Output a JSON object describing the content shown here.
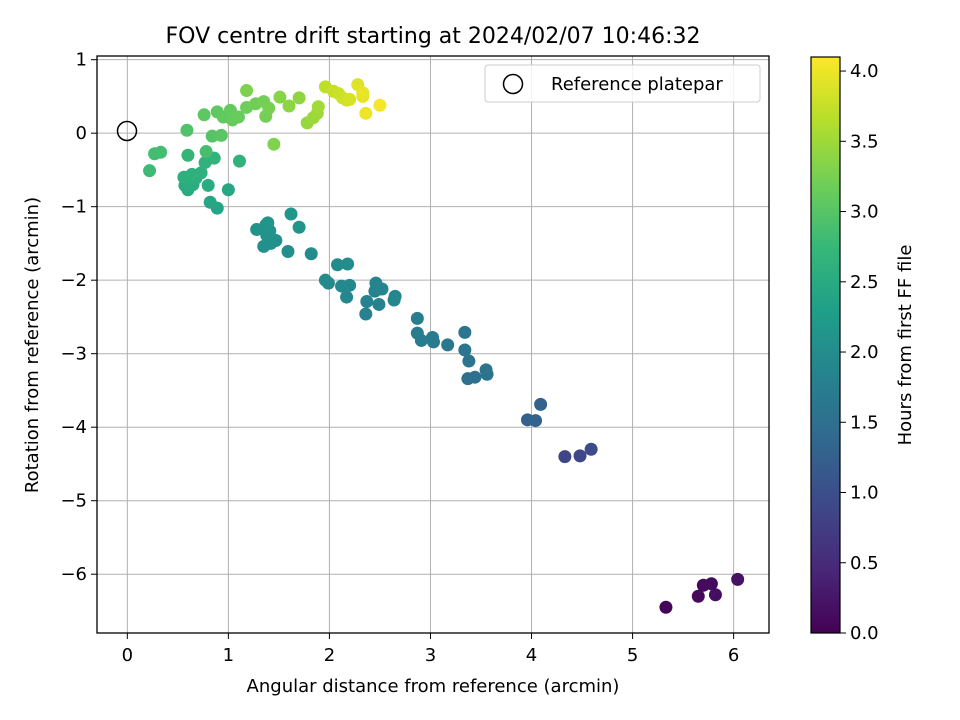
{
  "chart_data": {
    "type": "scatter",
    "title": "FOV centre drift starting at 2024/02/07 10:46:32",
    "xlabel": "Angular distance from reference (arcmin)",
    "ylabel": "Rotation from reference (arcmin)",
    "xlim": [
      -0.3,
      6.35
    ],
    "ylim": [
      -6.8,
      1.05
    ],
    "xticks": [
      0,
      1,
      2,
      3,
      4,
      5,
      6
    ],
    "yticks": [
      1,
      0,
      -1,
      -2,
      -3,
      -4,
      -5,
      -6
    ],
    "grid": true,
    "legend": {
      "placement": "top-right",
      "entries": [
        "Reference platepar"
      ]
    },
    "reference_point": {
      "x": 0,
      "y": 0,
      "label": "Reference platepar"
    },
    "colorbar": {
      "label": "Hours from first FF file",
      "range": [
        0.0,
        4.1
      ],
      "ticks": [
        "0.0",
        "0.5",
        "1.0",
        "1.5",
        "2.0",
        "2.5",
        "3.0",
        "3.5",
        "4.0"
      ],
      "colormap": [
        "#440154",
        "#482878",
        "#3e4989",
        "#31688e",
        "#26828e",
        "#1f9e89",
        "#35b779",
        "#6ece58",
        "#b5de2b",
        "#fde725"
      ]
    },
    "points": [
      {
        "x": 5.33,
        "y": -6.45,
        "c": 0.05
      },
      {
        "x": 5.65,
        "y": -6.3,
        "c": 0.08
      },
      {
        "x": 5.7,
        "y": -6.15,
        "c": 0.1
      },
      {
        "x": 5.78,
        "y": -6.13,
        "c": 0.12
      },
      {
        "x": 5.82,
        "y": -6.28,
        "c": 0.15
      },
      {
        "x": 6.04,
        "y": -6.07,
        "c": 0.2
      },
      {
        "x": 4.33,
        "y": -4.4,
        "c": 0.85
      },
      {
        "x": 4.48,
        "y": -4.39,
        "c": 0.9
      },
      {
        "x": 4.59,
        "y": -4.3,
        "c": 0.95
      },
      {
        "x": 3.96,
        "y": -3.9,
        "c": 1.25
      },
      {
        "x": 4.04,
        "y": -3.91,
        "c": 1.28
      },
      {
        "x": 4.09,
        "y": -3.69,
        "c": 1.3
      },
      {
        "x": 3.37,
        "y": -3.34,
        "c": 1.5
      },
      {
        "x": 3.44,
        "y": -3.32,
        "c": 1.52
      },
      {
        "x": 3.55,
        "y": -3.22,
        "c": 1.55
      },
      {
        "x": 3.56,
        "y": -3.28,
        "c": 1.56
      },
      {
        "x": 3.38,
        "y": -3.1,
        "c": 1.58
      },
      {
        "x": 3.34,
        "y": -2.95,
        "c": 1.6
      },
      {
        "x": 3.34,
        "y": -2.71,
        "c": 1.62
      },
      {
        "x": 3.17,
        "y": -2.88,
        "c": 1.65
      },
      {
        "x": 3.02,
        "y": -2.78,
        "c": 1.68
      },
      {
        "x": 3.03,
        "y": -2.84,
        "c": 1.69
      },
      {
        "x": 2.91,
        "y": -2.82,
        "c": 1.7
      },
      {
        "x": 2.87,
        "y": -2.72,
        "c": 1.72
      },
      {
        "x": 2.87,
        "y": -2.52,
        "c": 1.73
      },
      {
        "x": 2.36,
        "y": -2.46,
        "c": 1.8
      },
      {
        "x": 2.37,
        "y": -2.29,
        "c": 1.82
      },
      {
        "x": 2.49,
        "y": -2.33,
        "c": 1.83
      },
      {
        "x": 2.45,
        "y": -2.15,
        "c": 1.84
      },
      {
        "x": 2.46,
        "y": -2.04,
        "c": 1.85
      },
      {
        "x": 2.52,
        "y": -2.12,
        "c": 1.86
      },
      {
        "x": 2.65,
        "y": -2.22,
        "c": 1.87
      },
      {
        "x": 2.64,
        "y": -2.27,
        "c": 1.88
      },
      {
        "x": 2.17,
        "y": -2.23,
        "c": 1.9
      },
      {
        "x": 2.12,
        "y": -2.08,
        "c": 1.92
      },
      {
        "x": 2.2,
        "y": -2.07,
        "c": 1.93
      },
      {
        "x": 1.96,
        "y": -2.0,
        "c": 1.95
      },
      {
        "x": 1.99,
        "y": -2.04,
        "c": 1.96
      },
      {
        "x": 2.08,
        "y": -1.79,
        "c": 1.97
      },
      {
        "x": 2.18,
        "y": -1.78,
        "c": 1.98
      },
      {
        "x": 1.82,
        "y": -1.64,
        "c": 2.0
      },
      {
        "x": 1.59,
        "y": -1.61,
        "c": 2.02
      },
      {
        "x": 1.35,
        "y": -1.54,
        "c": 2.05
      },
      {
        "x": 1.42,
        "y": -1.5,
        "c": 2.06
      },
      {
        "x": 1.47,
        "y": -1.46,
        "c": 2.07
      },
      {
        "x": 1.38,
        "y": -1.39,
        "c": 2.08
      },
      {
        "x": 1.41,
        "y": -1.33,
        "c": 2.09
      },
      {
        "x": 1.28,
        "y": -1.31,
        "c": 2.1
      },
      {
        "x": 1.37,
        "y": -1.25,
        "c": 2.11
      },
      {
        "x": 1.39,
        "y": -1.22,
        "c": 2.12
      },
      {
        "x": 1.7,
        "y": -1.28,
        "c": 2.13
      },
      {
        "x": 1.62,
        "y": -1.1,
        "c": 2.15
      },
      {
        "x": 0.89,
        "y": -1.02,
        "c": 2.4
      },
      {
        "x": 0.82,
        "y": -0.94,
        "c": 2.42
      },
      {
        "x": 1.0,
        "y": -0.77,
        "c": 2.45
      },
      {
        "x": 0.6,
        "y": -0.77,
        "c": 2.5
      },
      {
        "x": 0.57,
        "y": -0.71,
        "c": 2.52
      },
      {
        "x": 0.8,
        "y": -0.71,
        "c": 2.53
      },
      {
        "x": 0.65,
        "y": -0.7,
        "c": 2.55
      },
      {
        "x": 0.68,
        "y": -0.61,
        "c": 2.56
      },
      {
        "x": 0.61,
        "y": -0.64,
        "c": 2.57
      },
      {
        "x": 0.56,
        "y": -0.6,
        "c": 2.58
      },
      {
        "x": 0.64,
        "y": -0.56,
        "c": 2.6
      },
      {
        "x": 0.73,
        "y": -0.54,
        "c": 2.61
      },
      {
        "x": 0.77,
        "y": -0.4,
        "c": 2.63
      },
      {
        "x": 1.11,
        "y": -0.38,
        "c": 2.65
      },
      {
        "x": 0.86,
        "y": -0.34,
        "c": 2.66
      },
      {
        "x": 0.6,
        "y": -0.3,
        "c": 2.7
      },
      {
        "x": 0.22,
        "y": -0.51,
        "c": 2.8
      },
      {
        "x": 0.27,
        "y": -0.28,
        "c": 2.85
      },
      {
        "x": 0.33,
        "y": -0.26,
        "c": 2.86
      },
      {
        "x": 0.78,
        "y": -0.25,
        "c": 2.88
      },
      {
        "x": 0.59,
        "y": 0.04,
        "c": 2.95
      },
      {
        "x": 0.84,
        "y": -0.04,
        "c": 3.0
      },
      {
        "x": 0.93,
        "y": -0.03,
        "c": 3.02
      },
      {
        "x": 0.76,
        "y": 0.25,
        "c": 3.05
      },
      {
        "x": 0.89,
        "y": 0.29,
        "c": 3.07
      },
      {
        "x": 0.95,
        "y": 0.22,
        "c": 3.08
      },
      {
        "x": 1.02,
        "y": 0.31,
        "c": 3.1
      },
      {
        "x": 1.04,
        "y": 0.18,
        "c": 3.12
      },
      {
        "x": 1.1,
        "y": 0.22,
        "c": 3.14
      },
      {
        "x": 1.18,
        "y": 0.35,
        "c": 3.18
      },
      {
        "x": 1.27,
        "y": 0.4,
        "c": 3.2
      },
      {
        "x": 1.35,
        "y": 0.43,
        "c": 3.22
      },
      {
        "x": 1.37,
        "y": 0.23,
        "c": 3.23
      },
      {
        "x": 1.4,
        "y": 0.34,
        "c": 3.25
      },
      {
        "x": 1.18,
        "y": 0.58,
        "c": 3.28
      },
      {
        "x": 1.45,
        "y": -0.15,
        "c": 3.3
      },
      {
        "x": 1.51,
        "y": 0.49,
        "c": 3.35
      },
      {
        "x": 1.6,
        "y": 0.37,
        "c": 3.38
      },
      {
        "x": 1.7,
        "y": 0.48,
        "c": 3.4
      },
      {
        "x": 1.78,
        "y": 0.14,
        "c": 3.45
      },
      {
        "x": 1.84,
        "y": 0.21,
        "c": 3.48
      },
      {
        "x": 1.88,
        "y": 0.27,
        "c": 3.5
      },
      {
        "x": 1.89,
        "y": 0.36,
        "c": 3.52
      },
      {
        "x": 1.96,
        "y": 0.63,
        "c": 3.7
      },
      {
        "x": 2.04,
        "y": 0.57,
        "c": 3.75
      },
      {
        "x": 2.09,
        "y": 0.54,
        "c": 3.78
      },
      {
        "x": 2.13,
        "y": 0.48,
        "c": 3.8
      },
      {
        "x": 2.17,
        "y": 0.45,
        "c": 3.82
      },
      {
        "x": 2.2,
        "y": 0.46,
        "c": 3.84
      },
      {
        "x": 2.28,
        "y": 0.66,
        "c": 3.9
      },
      {
        "x": 2.33,
        "y": 0.5,
        "c": 3.95
      },
      {
        "x": 2.33,
        "y": 0.55,
        "c": 3.97
      },
      {
        "x": 2.36,
        "y": 0.27,
        "c": 4.0
      },
      {
        "x": 2.5,
        "y": 0.38,
        "c": 4.05
      }
    ]
  }
}
